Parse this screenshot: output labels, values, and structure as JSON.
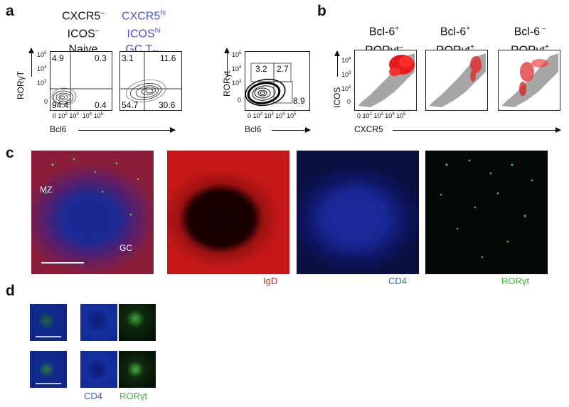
{
  "panels": {
    "a": "a",
    "b": "b",
    "c": "c",
    "d": "d"
  },
  "a": {
    "col1": {
      "line1": "CXCR5",
      "sup1": "–",
      "line2": "ICOS",
      "sup2": "–",
      "line3": "Naive"
    },
    "col2": {
      "line1": "CXCR5",
      "sup1": "hi",
      "line2": "ICOS",
      "sup2": "hi",
      "line3a": "GC T",
      "sub3": "FH"
    },
    "ylabel": "RORγT",
    "xlabel": "Bcl6",
    "plot1": {
      "tl": "4.9",
      "tr": "0.3",
      "bl": "94.4",
      "br": "0.4"
    },
    "plot2": {
      "tl": "3.1",
      "tr": "11.6",
      "bl": "54.7",
      "br": "30.6"
    },
    "yticks": {
      "t5": "10",
      "e5": "5",
      "t4": "10",
      "e4": "4",
      "t3": "10",
      "e3": "3",
      "t0": "0"
    },
    "xticks": {
      "x0": "0",
      "x2": "10",
      "e2": "2",
      "x3": "10",
      "e3": "3",
      "x4": "10",
      "e4": "4",
      "x5": "10",
      "e5": "5"
    }
  },
  "b": {
    "ylabel": "RORγt",
    "xlabel": "Bcl6",
    "gates": {
      "g1": "3.2",
      "g2": "2.7",
      "g3": "8.9"
    },
    "headers": [
      {
        "l1": "Bcl-6",
        "s1": "+",
        "l2": "RORγt",
        "s2": "–"
      },
      {
        "l1": "Bcl-6",
        "s1": "+",
        "l2": "RORγt",
        "s2": "+"
      },
      {
        "l1": "Bcl-6",
        "s1": " –",
        "l2": "RORγt",
        "s2": "+"
      }
    ],
    "ylabel2": "ICOS",
    "xlabel2": "CXCR5"
  },
  "c": {
    "mz": "MZ",
    "gc": "GC",
    "channels": {
      "igd": "IgD",
      "cd4": "CD4",
      "roryt": "RORγt"
    }
  },
  "d": {
    "cd4": "CD4",
    "roryt": "RORγt"
  },
  "colors": {
    "red": "#e0241b",
    "blue": "#2a66d9",
    "green": "#3cb82e",
    "gray": "#9a9a9a",
    "accentBlue": "#4b55d6"
  }
}
